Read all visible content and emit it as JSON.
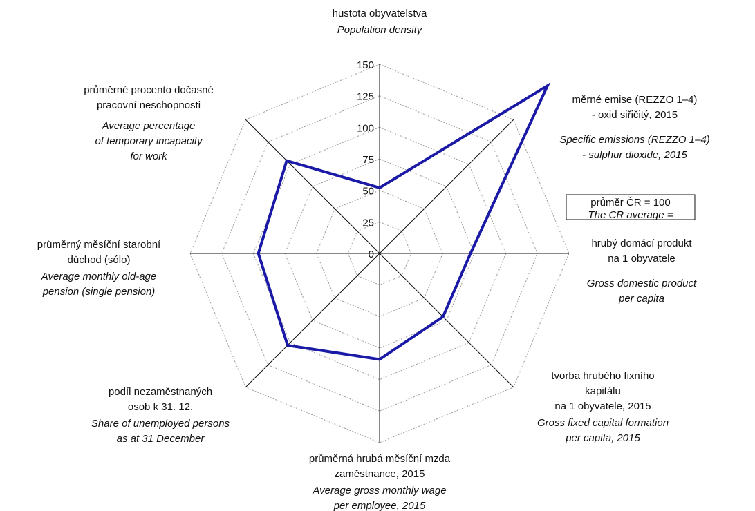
{
  "chart_data": {
    "type": "radar",
    "categories": [
      [
        "hustota obyvatelstva"
      ],
      [
        "měrné emise (REZZO 1–4)",
        "- oxid siřičitý, 2015"
      ],
      [
        "hrubý domácí produkt",
        "na 1 obyvatele"
      ],
      [
        "tvorba hrubého fixního",
        "kapitálu",
        "na 1 obyvatele, 2015"
      ],
      [
        "průměrná hrubá měsíční mzda",
        "zaměstnance, 2015"
      ],
      [
        "podíl nezaměstnaných",
        "osob k 31. 12."
      ],
      [
        "průměrný měsíční starobní",
        "důchod (sólo)"
      ],
      [
        "průměrné procento dočasné",
        "pracovní neschopnosti"
      ]
    ],
    "categories_en": [
      [
        "Population density"
      ],
      [
        "Specific emissions (REZZO 1–4)",
        "- sulphur dioxide, 2015"
      ],
      [
        "Gross domestic product",
        "per capita"
      ],
      [
        "Gross fixed capital formation",
        "per capita, 2015"
      ],
      [
        "Average gross monthly wage",
        "per employee, 2015"
      ],
      [
        "Share of unemployed persons",
        "as at 31 December"
      ],
      [
        "Average monthly old-age",
        "pension (single pension)"
      ],
      [
        "Average percentage",
        "of temporary incapacity",
        "for work"
      ]
    ],
    "values": [
      52,
      188,
      72,
      71,
      84,
      103,
      96,
      104
    ],
    "color": "#1a1aa6",
    "ylim": [
      0,
      150
    ],
    "yticks": [
      0,
      25,
      50,
      75,
      100,
      125,
      150
    ],
    "grid": true,
    "legend_box": [
      "průměr ČR = 100",
      "The CR average ="
    ]
  }
}
